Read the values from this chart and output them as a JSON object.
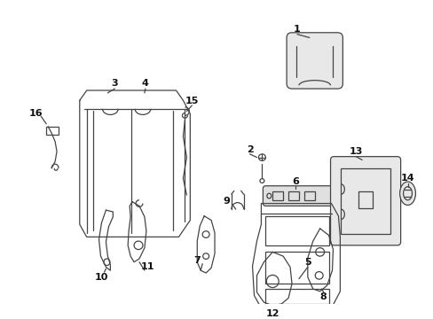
{
  "bg_color": "#ffffff",
  "line_color": "#444444",
  "label_color": "#111111",
  "figsize": [
    4.89,
    3.6
  ],
  "dpi": 100
}
